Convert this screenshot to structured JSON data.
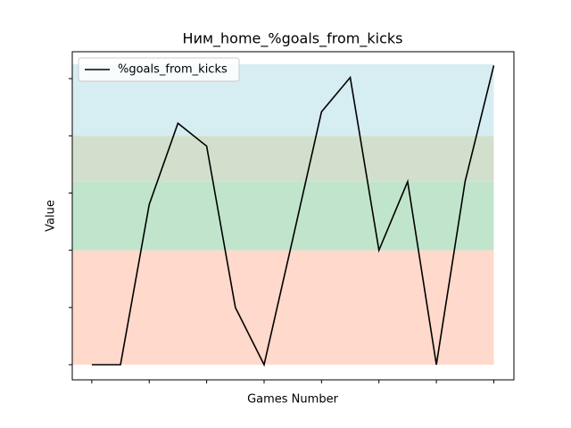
{
  "chart_data": {
    "type": "line",
    "title": "Ним_home_%goals_from_kicks",
    "xlabel": "Games Number",
    "ylabel": "Value",
    "x": [
      0,
      1,
      2,
      3,
      4,
      5,
      6,
      7,
      8,
      9,
      10,
      11,
      12,
      13,
      14
    ],
    "series": [
      {
        "name": "%goals_from_kicks",
        "color": "#000000",
        "values": [
          0,
          0,
          2.8,
          4.22,
          3.82,
          1.0,
          0,
          2.2,
          4.42,
          5.02,
          2.0,
          3.2,
          0,
          3.2,
          5.23
        ]
      }
    ],
    "bands": [
      {
        "from": 0,
        "to": 2,
        "color": "#ffd9cb"
      },
      {
        "from": 2,
        "to": 3.2,
        "color": "#c0e5cc"
      },
      {
        "from": 3.2,
        "to": 4,
        "color": "#d3dfcd"
      },
      {
        "from": 4,
        "to": 5.25,
        "color": "#d6edf2"
      }
    ],
    "xlim": [
      -0.68,
      14.7
    ],
    "ylim": [
      -0.265,
      5.47
    ],
    "xticks": [
      0,
      2,
      4,
      6,
      8,
      10,
      12,
      14
    ],
    "yticks": [
      0,
      1,
      2,
      3,
      4,
      5
    ],
    "legend": "upper left"
  }
}
